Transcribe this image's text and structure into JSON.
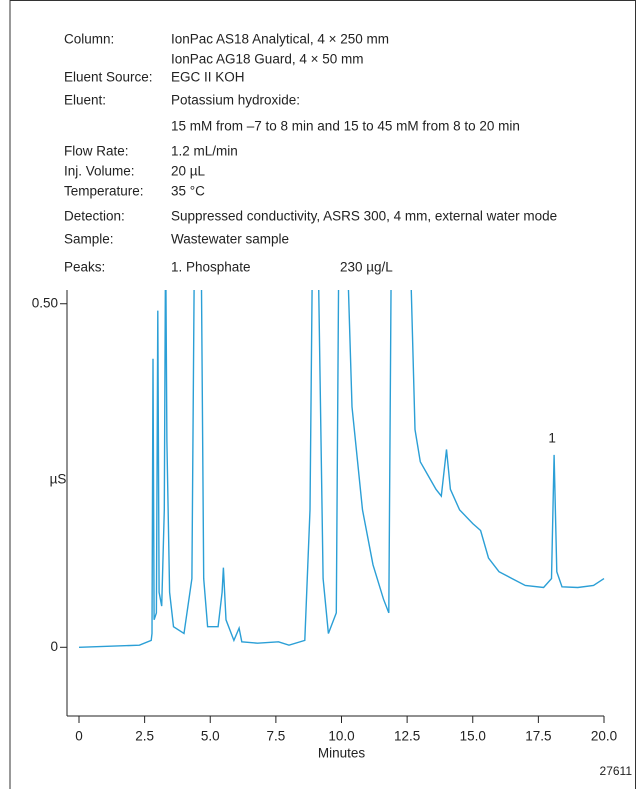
{
  "chart_data": {
    "type": "line",
    "conditions": [
      {
        "label": "Column:",
        "lines": [
          "IonPac AS18 Analytical, 4 × 250 mm",
          "IonPac AG18 Guard, 4 × 50 mm"
        ]
      },
      {
        "label": "Eluent Source:",
        "lines": [
          "EGC II KOH"
        ]
      },
      {
        "label": "Eluent:",
        "lines": [
          "Potassium hydroxide:",
          "15 mM from –7 to 8 min and 15 to 45 mM from 8 to 20 min"
        ]
      },
      {
        "label": "Flow Rate:",
        "lines": [
          "1.2 mL/min"
        ]
      },
      {
        "label": "Inj. Volume:",
        "lines": [
          "20 µL"
        ]
      },
      {
        "label": "Temperature:",
        "lines": [
          "35 °C"
        ]
      },
      {
        "label": "Detection:",
        "lines": [
          "Suppressed conductivity,  ASRS 300, 4 mm, external water mode"
        ]
      },
      {
        "label": "Sample:",
        "lines": [
          "Wastewater sample"
        ]
      }
    ],
    "peaks": {
      "label": "Peaks:",
      "items": [
        {
          "name": "1. Phosphate",
          "amount": "230 µg/L"
        }
      ]
    },
    "x_label": "Minutes",
    "y_label": "µS",
    "figure_id": "27611",
    "peak_labels": [
      {
        "label": "1",
        "x": 18.1
      }
    ],
    "color": "#2b9fd6",
    "x": [
      0,
      2.3,
      2.75,
      2.78,
      2.82,
      2.86,
      2.95,
      3.0,
      3.05,
      3.15,
      3.25,
      3.3,
      3.35,
      3.45,
      3.6,
      4.0,
      4.3,
      4.4,
      4.65,
      4.75,
      4.9,
      5.3,
      5.45,
      5.5,
      5.6,
      5.9,
      6.1,
      6.2,
      6.8,
      7.6,
      8.0,
      8.6,
      8.8,
      8.9,
      9.1,
      9.3,
      9.5,
      9.8,
      9.9,
      10.2,
      10.4,
      10.8,
      11.2,
      11.6,
      11.8,
      11.9,
      12.6,
      12.8,
      13.0,
      13.3,
      13.6,
      13.8,
      14.0,
      14.15,
      14.5,
      15.0,
      15.3,
      15.6,
      16.0,
      16.5,
      17.0,
      17.7,
      18.0,
      18.1,
      18.2,
      18.4,
      19.0,
      19.6,
      20.0
    ],
    "values": [
      0.0,
      0.003,
      0.01,
      0.02,
      0.42,
      0.04,
      0.05,
      0.49,
      0.08,
      0.06,
      0.2,
      0.6,
      0.3,
      0.08,
      0.03,
      0.02,
      0.1,
      0.6,
      0.6,
      0.1,
      0.03,
      0.03,
      0.08,
      0.116,
      0.04,
      0.01,
      0.028,
      0.008,
      0.006,
      0.008,
      0.003,
      0.01,
      0.2,
      0.6,
      0.6,
      0.1,
      0.02,
      0.05,
      0.6,
      0.6,
      0.35,
      0.2,
      0.12,
      0.07,
      0.05,
      0.6,
      0.6,
      0.317,
      0.27,
      0.25,
      0.23,
      0.22,
      0.288,
      0.23,
      0.2,
      0.18,
      0.17,
      0.13,
      0.11,
      0.1,
      0.09,
      0.087,
      0.1,
      0.28,
      0.11,
      0.088,
      0.087,
      0.09,
      0.1
    ],
    "xlim": [
      0,
      20
    ],
    "ylim": [
      -0.1,
      0.52
    ],
    "xticks": [
      0,
      2.5,
      {
        "value": 5,
        "label": "5.0"
      },
      7.5,
      {
        "value": 10,
        "label": "10.0"
      },
      12.5,
      {
        "value": 15,
        "label": "15.0"
      },
      17.5,
      {
        "value": 20,
        "label": "20.0"
      }
    ],
    "yticks": [
      {
        "value": 0.5,
        "label": "0.50"
      },
      0
    ]
  }
}
